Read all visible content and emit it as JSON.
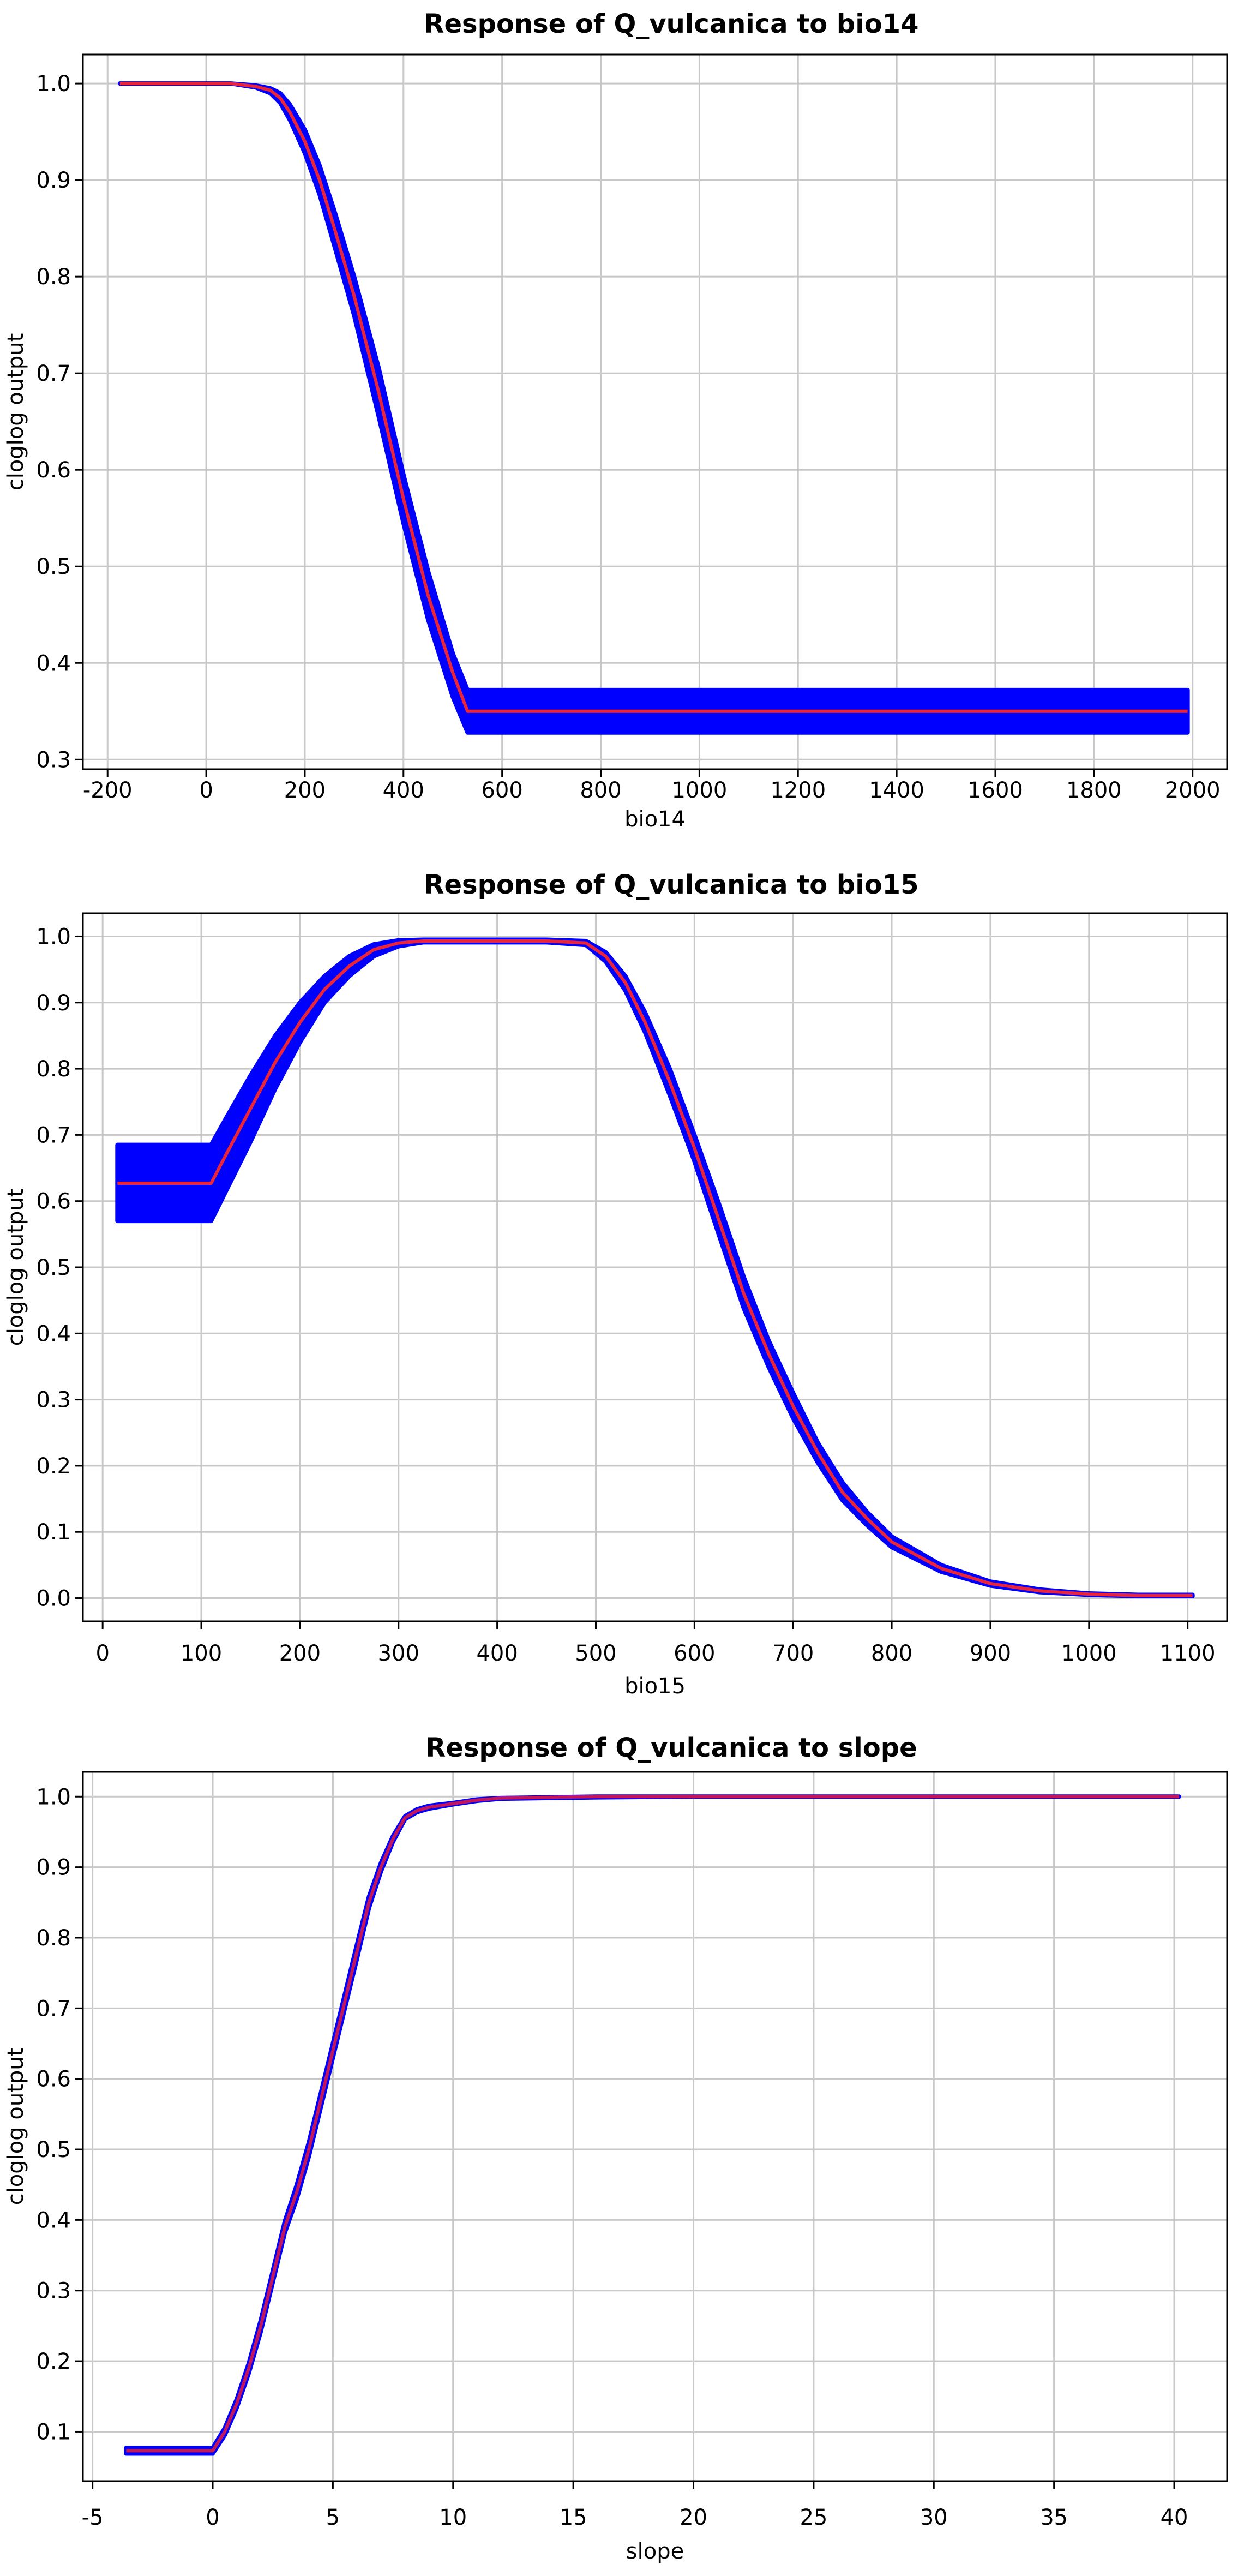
{
  "chart_data": [
    {
      "type": "line",
      "title": "Response of Q_vulcanica to bio14",
      "xlabel": "bio14",
      "ylabel": "cloglog output",
      "xlim": [
        -250,
        2070
      ],
      "ylim": [
        0.29,
        1.03
      ],
      "xticks": [
        -200,
        0,
        200,
        400,
        600,
        800,
        1000,
        1200,
        1400,
        1600,
        1800,
        2000
      ],
      "yticks": [
        0.3,
        0.4,
        0.5,
        0.6,
        0.7,
        0.8,
        0.9,
        1.0
      ],
      "ytick_decimals": 1,
      "grid": true,
      "colors": {
        "band": "#0000ff",
        "mean": "#e8253a"
      },
      "series": [
        {
          "role": "mean",
          "x": [
            -175,
            0,
            50,
            100,
            130,
            150,
            170,
            200,
            230,
            260,
            300,
            350,
            400,
            450,
            500,
            530,
            600,
            800,
            1000,
            1200,
            1400,
            1600,
            1800,
            1990
          ],
          "values": [
            1.0,
            1.0,
            1.0,
            0.997,
            0.993,
            0.985,
            0.97,
            0.94,
            0.9,
            0.85,
            0.78,
            0.68,
            0.57,
            0.47,
            0.39,
            0.35,
            0.35,
            0.35,
            0.35,
            0.35,
            0.35,
            0.35,
            0.35,
            0.35
          ]
        },
        {
          "role": "upper",
          "x": [
            -175,
            0,
            50,
            100,
            130,
            150,
            170,
            200,
            230,
            260,
            300,
            350,
            400,
            450,
            500,
            530,
            600,
            800,
            1000,
            1200,
            1400,
            1600,
            1800,
            1990
          ],
          "values": [
            1.0,
            1.0,
            1.0,
            0.998,
            0.995,
            0.99,
            0.978,
            0.952,
            0.915,
            0.868,
            0.8,
            0.705,
            0.595,
            0.495,
            0.41,
            0.372,
            0.372,
            0.372,
            0.372,
            0.372,
            0.372,
            0.372,
            0.372,
            0.372
          ]
        },
        {
          "role": "lower",
          "x": [
            -175,
            0,
            50,
            100,
            130,
            150,
            170,
            200,
            230,
            260,
            300,
            350,
            400,
            450,
            500,
            530,
            600,
            800,
            1000,
            1200,
            1400,
            1600,
            1800,
            1990
          ],
          "values": [
            1.0,
            1.0,
            1.0,
            0.996,
            0.99,
            0.98,
            0.962,
            0.928,
            0.885,
            0.832,
            0.76,
            0.655,
            0.545,
            0.445,
            0.365,
            0.328,
            0.328,
            0.328,
            0.328,
            0.328,
            0.328,
            0.328,
            0.328,
            0.328
          ]
        }
      ]
    },
    {
      "type": "line",
      "title": "Response of Q_vulcanica to bio15",
      "xlabel": "bio15",
      "ylabel": "cloglog output",
      "xlim": [
        -20,
        1140
      ],
      "ylim": [
        -0.035,
        1.035
      ],
      "xticks": [
        0,
        100,
        200,
        300,
        400,
        500,
        600,
        700,
        800,
        900,
        1000,
        1100
      ],
      "yticks": [
        0.0,
        0.1,
        0.2,
        0.3,
        0.4,
        0.5,
        0.6,
        0.7,
        0.8,
        0.9,
        1.0
      ],
      "ytick_decimals": 1,
      "grid": true,
      "colors": {
        "band": "#0000ff",
        "mean": "#e8253a"
      },
      "series": [
        {
          "role": "mean",
          "x": [
            15,
            110,
            125,
            150,
            175,
            200,
            225,
            250,
            275,
            300,
            325,
            350,
            400,
            450,
            490,
            510,
            530,
            550,
            575,
            600,
            625,
            650,
            675,
            700,
            725,
            750,
            775,
            800,
            850,
            900,
            950,
            1000,
            1050,
            1105
          ],
          "values": [
            0.627,
            0.627,
            0.67,
            0.74,
            0.81,
            0.87,
            0.92,
            0.955,
            0.98,
            0.99,
            0.993,
            0.993,
            0.993,
            0.993,
            0.99,
            0.97,
            0.93,
            0.87,
            0.78,
            0.68,
            0.57,
            0.46,
            0.37,
            0.29,
            0.22,
            0.16,
            0.12,
            0.085,
            0.045,
            0.022,
            0.011,
            0.006,
            0.004,
            0.004
          ]
        },
        {
          "role": "upper",
          "x": [
            15,
            110,
            125,
            150,
            175,
            200,
            225,
            250,
            275,
            300,
            325,
            350,
            400,
            450,
            490,
            510,
            530,
            550,
            575,
            600,
            625,
            650,
            675,
            700,
            725,
            750,
            775,
            800,
            850,
            900,
            950,
            1000,
            1050,
            1105
          ],
          "values": [
            0.685,
            0.685,
            0.725,
            0.79,
            0.85,
            0.9,
            0.94,
            0.97,
            0.988,
            0.994,
            0.995,
            0.995,
            0.995,
            0.995,
            0.993,
            0.976,
            0.94,
            0.885,
            0.8,
            0.7,
            0.595,
            0.485,
            0.39,
            0.31,
            0.235,
            0.175,
            0.13,
            0.093,
            0.05,
            0.025,
            0.013,
            0.007,
            0.005,
            0.005
          ]
        },
        {
          "role": "lower",
          "x": [
            15,
            110,
            125,
            150,
            175,
            200,
            225,
            250,
            275,
            300,
            325,
            350,
            400,
            450,
            490,
            510,
            530,
            550,
            575,
            600,
            625,
            650,
            675,
            700,
            725,
            750,
            775,
            800,
            850,
            900,
            950,
            1000,
            1050,
            1105
          ],
          "values": [
            0.57,
            0.57,
            0.615,
            0.69,
            0.77,
            0.84,
            0.9,
            0.94,
            0.97,
            0.985,
            0.991,
            0.991,
            0.991,
            0.991,
            0.987,
            0.962,
            0.918,
            0.855,
            0.76,
            0.66,
            0.548,
            0.438,
            0.35,
            0.272,
            0.205,
            0.148,
            0.11,
            0.077,
            0.04,
            0.019,
            0.009,
            0.005,
            0.003,
            0.003
          ]
        }
      ]
    },
    {
      "type": "line",
      "title": "Response of Q_vulcanica to slope",
      "xlabel": "slope",
      "ylabel": "cloglog output",
      "xlim": [
        -5.4,
        42.2
      ],
      "ylim": [
        0.03,
        1.035
      ],
      "xticks": [
        -5,
        0,
        5,
        10,
        15,
        20,
        25,
        30,
        35,
        40
      ],
      "yticks": [
        0.1,
        0.2,
        0.3,
        0.4,
        0.5,
        0.6,
        0.7,
        0.8,
        0.9,
        1.0
      ],
      "ytick_decimals": 1,
      "grid": true,
      "colors": {
        "band": "#0000ff",
        "mean": "#c2185b"
      },
      "series": [
        {
          "role": "mean",
          "x": [
            -3.6,
            0,
            0.5,
            1,
            1.5,
            2,
            2.5,
            3,
            3.5,
            4,
            4.5,
            5,
            5.5,
            6,
            6.5,
            7,
            7.5,
            8,
            8.5,
            9,
            10,
            11,
            12,
            14,
            16,
            20,
            30,
            40.2
          ],
          "values": [
            0.073,
            0.073,
            0.1,
            0.14,
            0.19,
            0.25,
            0.32,
            0.39,
            0.44,
            0.5,
            0.57,
            0.64,
            0.71,
            0.78,
            0.85,
            0.9,
            0.94,
            0.97,
            0.98,
            0.985,
            0.99,
            0.995,
            0.998,
            0.999,
            1.0,
            1.0,
            1.0,
            1.0
          ]
        },
        {
          "role": "upper",
          "x": [
            -3.6,
            0,
            0.5,
            1,
            1.5,
            2,
            2.5,
            3,
            3.5,
            4,
            4.5,
            5,
            5.5,
            6,
            6.5,
            7,
            7.5,
            8,
            8.5,
            9,
            10,
            11,
            12,
            14,
            16,
            20,
            30,
            40.2
          ],
          "values": [
            0.077,
            0.077,
            0.105,
            0.146,
            0.197,
            0.258,
            0.328,
            0.398,
            0.45,
            0.51,
            0.58,
            0.65,
            0.72,
            0.79,
            0.858,
            0.906,
            0.944,
            0.972,
            0.982,
            0.987,
            0.991,
            0.996,
            0.998,
            0.999,
            1.0,
            1.0,
            1.0,
            1.0
          ]
        },
        {
          "role": "lower",
          "x": [
            -3.6,
            0,
            0.5,
            1,
            1.5,
            2,
            2.5,
            3,
            3.5,
            4,
            4.5,
            5,
            5.5,
            6,
            6.5,
            7,
            7.5,
            8,
            8.5,
            9,
            10,
            11,
            12,
            14,
            16,
            20,
            30,
            40.2
          ],
          "values": [
            0.069,
            0.069,
            0.095,
            0.134,
            0.183,
            0.242,
            0.312,
            0.382,
            0.43,
            0.49,
            0.56,
            0.63,
            0.7,
            0.77,
            0.842,
            0.894,
            0.936,
            0.968,
            0.978,
            0.983,
            0.989,
            0.994,
            0.997,
            0.998,
            0.999,
            1.0,
            1.0,
            1.0
          ]
        }
      ]
    }
  ]
}
